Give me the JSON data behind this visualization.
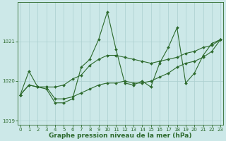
{
  "title": "Graphe pression niveau de la mer (hPa)",
  "x_values": [
    0,
    1,
    2,
    3,
    4,
    5,
    6,
    7,
    8,
    9,
    10,
    11,
    12,
    13,
    14,
    15,
    16,
    17,
    18,
    19,
    20,
    21,
    22,
    23
  ],
  "series_volatile": [
    1019.65,
    1020.25,
    1019.85,
    1019.8,
    1019.45,
    1019.45,
    1019.55,
    1020.35,
    1020.55,
    1021.05,
    1021.75,
    1020.8,
    1019.95,
    1019.9,
    1020.0,
    1019.85,
    1020.45,
    1020.85,
    1021.35,
    1019.95,
    1020.2,
    1020.65,
    1020.95,
    1021.05
  ],
  "series_upper": [
    1019.65,
    1019.9,
    1019.85,
    1019.85,
    1019.85,
    1019.9,
    1020.05,
    1020.15,
    1020.4,
    1020.55,
    1020.65,
    1020.65,
    1020.6,
    1020.55,
    1020.5,
    1020.45,
    1020.5,
    1020.55,
    1020.6,
    1020.7,
    1020.75,
    1020.85,
    1020.9,
    1021.05
  ],
  "series_lower": [
    1019.65,
    1019.9,
    1019.85,
    1019.85,
    1019.55,
    1019.55,
    1019.6,
    1019.7,
    1019.8,
    1019.9,
    1019.95,
    1019.95,
    1020.0,
    1019.95,
    1019.95,
    1020.0,
    1020.1,
    1020.2,
    1020.35,
    1020.45,
    1020.5,
    1020.6,
    1020.75,
    1021.05
  ],
  "line_color": "#2d6a2d",
  "marker": "D",
  "marker_size": 2.0,
  "bg_color": "#cce8e8",
  "grid_color": "#aacfcf",
  "axis_color": "#2d6a2d",
  "tick_color": "#2d6a2d",
  "label_color": "#2d6a2d",
  "ylim": [
    1018.9,
    1022.0
  ],
  "yticks": [
    1019,
    1020,
    1021
  ],
  "xlim": [
    -0.3,
    23.3
  ],
  "title_fontsize": 6.5,
  "tick_fontsize": 5.0,
  "linewidth": 0.8
}
